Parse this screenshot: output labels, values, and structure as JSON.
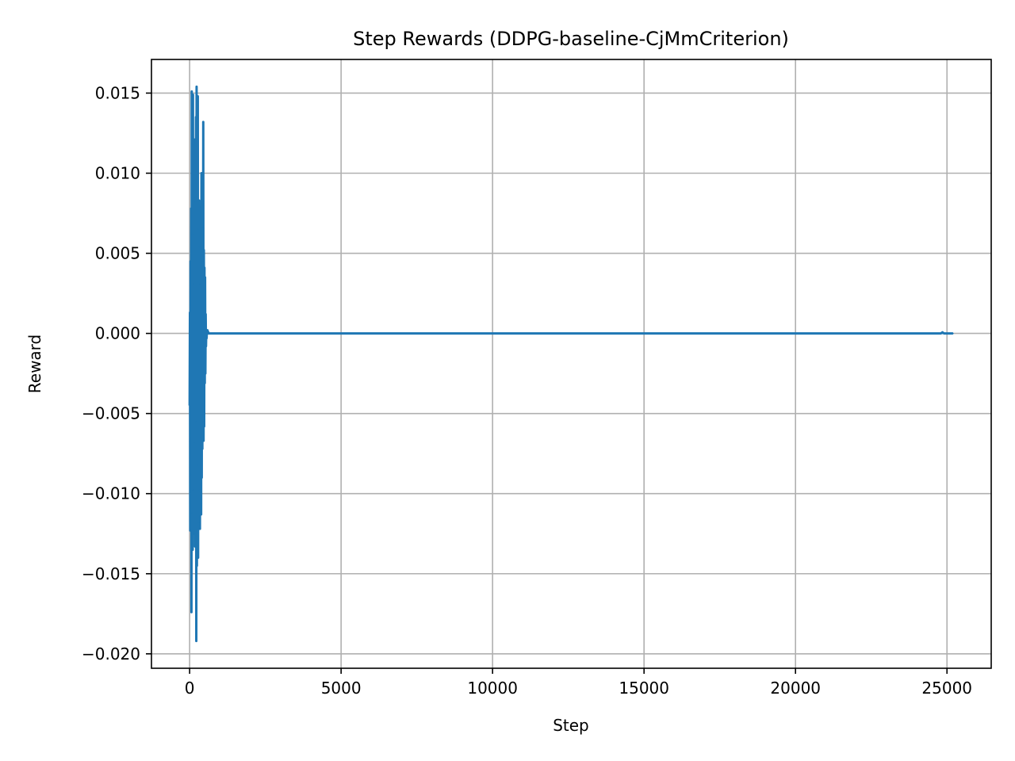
{
  "chart_data": {
    "type": "line",
    "title": "Step Rewards (DDPG-baseline-CjMmCriterion)",
    "xlabel": "Step",
    "ylabel": "Reward",
    "xlim": [
      -1260,
      26460
    ],
    "ylim": [
      -0.0209,
      0.0171
    ],
    "xticks": [
      0,
      5000,
      10000,
      15000,
      20000,
      25000
    ],
    "xtick_labels": [
      "0",
      "5000",
      "10000",
      "15000",
      "20000",
      "25000"
    ],
    "yticks": [
      0.015,
      0.01,
      0.005,
      0.0,
      -0.005,
      -0.01,
      -0.015,
      -0.02
    ],
    "ytick_labels": [
      "0.015",
      "0.010",
      "0.005",
      "0.000",
      "−0.005",
      "−0.010",
      "−0.015",
      "−0.020"
    ],
    "grid": true,
    "color": "#1f77b4",
    "series": [
      {
        "x": [
          0,
          10,
          20,
          30,
          40,
          50,
          60,
          70,
          80,
          90,
          100,
          110,
          120,
          130,
          140,
          150,
          160,
          170,
          180,
          190,
          200,
          210,
          220,
          230,
          240,
          250,
          260,
          270,
          280,
          290,
          300,
          310,
          320,
          330,
          340,
          350,
          360,
          370,
          380,
          390,
          400,
          410,
          420,
          430,
          440,
          450,
          460,
          470,
          480,
          490,
          500,
          510,
          520,
          530,
          540,
          550,
          560,
          570,
          580,
          590,
          600,
          610,
          620,
          630,
          640,
          650,
          660,
          670,
          680,
          700,
          750,
          800,
          1000,
          5000,
          10000,
          15000,
          20000,
          24800,
          24850,
          24900,
          25200
        ],
        "y": [
          -0.0045,
          0.0013,
          -0.0123,
          0.0045,
          -0.0088,
          0.0078,
          -0.0174,
          0.0151,
          -0.0112,
          0.0062,
          -0.0135,
          0.0149,
          -0.0098,
          0.0031,
          -0.0125,
          0.0085,
          -0.0068,
          0.0121,
          -0.0133,
          0.0082,
          -0.0055,
          0.0135,
          -0.0192,
          0.0154,
          -0.0145,
          0.0121,
          -0.0082,
          0.0148,
          -0.014,
          0.0065,
          -0.0118,
          0.0083,
          -0.0098,
          0.0054,
          -0.0122,
          0.0031,
          -0.0065,
          0.0079,
          -0.0113,
          0.01,
          -0.009,
          0.0045,
          -0.0072,
          0.0066,
          -0.0055,
          0.0132,
          -0.0067,
          0.0052,
          -0.0058,
          0.0041,
          -0.0031,
          0.0035,
          -0.0025,
          0.0012,
          -0.0008,
          0.0002,
          -0.0003,
          0.0001,
          0.0,
          0.0002,
          0.0,
          0.0001,
          0.0,
          0.0,
          0.0,
          0.0,
          0.0,
          0.0,
          0.0,
          0.0,
          0.0,
          0.0,
          0.0,
          0.0,
          0.0,
          0.0,
          0.0,
          0.0,
          7e-05,
          0.0,
          0.0
        ]
      }
    ]
  }
}
